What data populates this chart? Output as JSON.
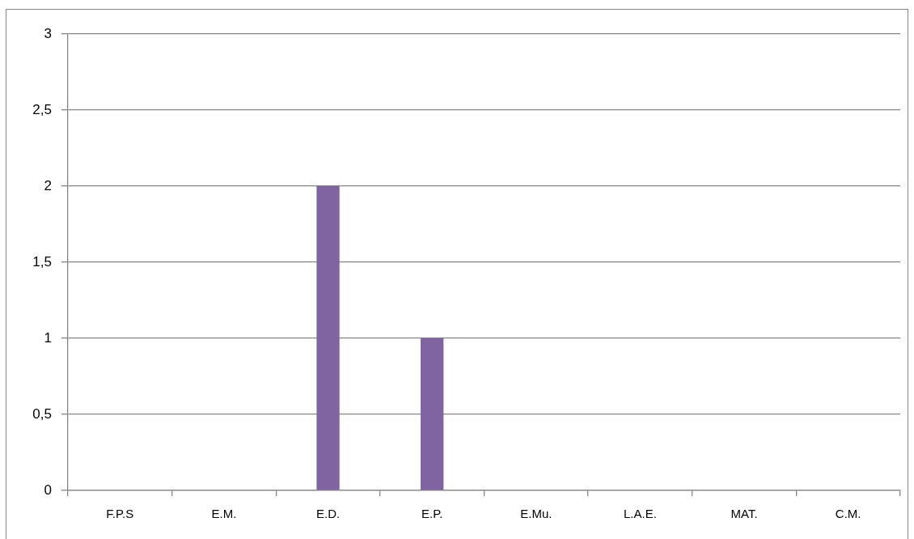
{
  "chart_data": {
    "type": "bar",
    "categories": [
      "F.P.S",
      "E.M.",
      "E.D.",
      "E.P.",
      "E.Mu.",
      "L.A.E.",
      "MAT.",
      "C.M."
    ],
    "values": [
      0,
      0,
      2,
      1,
      0,
      0,
      0,
      0
    ],
    "color": "#8064a2",
    "ylim": [
      0,
      3
    ],
    "yticks": [
      0,
      {
        "value": 0.5,
        "label": "0,5"
      },
      1,
      {
        "value": 1.5,
        "label": "1,5"
      },
      2,
      {
        "value": 2.5,
        "label": "2,5"
      },
      3
    ],
    "grid": "y"
  }
}
